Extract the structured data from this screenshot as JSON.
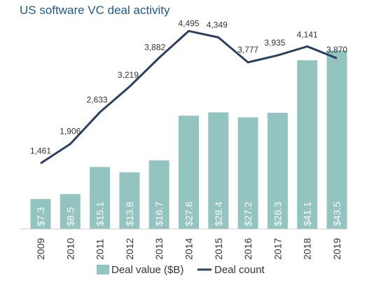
{
  "chart_data": {
    "type": "bar+line",
    "title": "US software VC deal activity",
    "categories": [
      "2009",
      "2010",
      "2011",
      "2012",
      "2013",
      "2014",
      "2015",
      "2016",
      "2017",
      "2018",
      "2019"
    ],
    "series": [
      {
        "name": "Deal value ($B)",
        "type": "bar",
        "values": [
          7.3,
          8.5,
          15.1,
          13.8,
          16.7,
          27.6,
          28.4,
          27.2,
          28.3,
          41.1,
          43.5
        ],
        "labels": [
          "$7.3",
          "$8.5",
          "$15.1",
          "$13.8",
          "$16.7",
          "$27.6",
          "$28.4",
          "$27.2",
          "$28.3",
          "$41.1",
          "$43.5"
        ],
        "color": "#93c4bf"
      },
      {
        "name": "Deal count",
        "type": "line",
        "values": [
          1461,
          1906,
          2633,
          3219,
          3882,
          4495,
          4349,
          3777,
          3935,
          4141,
          3870
        ],
        "labels": [
          "1,461",
          "1,906",
          "2,633",
          "3,219",
          "3,882",
          "4,495",
          "4,349",
          "3,777",
          "3,935",
          "4,141",
          "3,870"
        ],
        "color": "#2c4160"
      }
    ],
    "legend_position": "bottom",
    "grid": false
  }
}
